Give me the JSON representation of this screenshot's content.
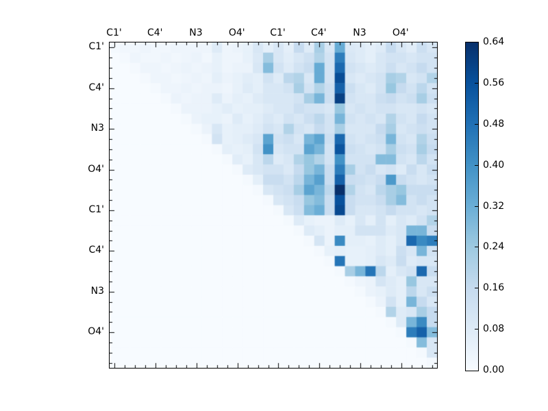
{
  "figure": {
    "background_color": "#ffffff",
    "title": ""
  },
  "chart_data": {
    "type": "heatmap",
    "title": "",
    "xlabel": "",
    "ylabel": "",
    "n": 32,
    "x_axis_side": "top",
    "y_axis_side": "left",
    "grid": false,
    "x_tick_labels": [
      "C1'",
      "C4'",
      "N3",
      "O4'",
      "C1'",
      "C4'",
      "N3",
      "O4'"
    ],
    "y_tick_labels": [
      "C1'",
      "C4'",
      "N3",
      "O4'",
      "C1'",
      "C4'",
      "N3",
      "O4'"
    ],
    "major_tick_positions": [
      0,
      4,
      8,
      12,
      16,
      20,
      24,
      28
    ],
    "vmin": 0.0,
    "vmax": 0.64,
    "colormap": "Blues",
    "colormap_stops": [
      [
        247,
        251,
        255
      ],
      [
        222,
        235,
        247
      ],
      [
        198,
        219,
        239
      ],
      [
        158,
        202,
        225
      ],
      [
        107,
        174,
        214
      ],
      [
        66,
        146,
        198
      ],
      [
        33,
        113,
        181
      ],
      [
        8,
        81,
        156
      ],
      [
        8,
        48,
        107
      ]
    ],
    "colorbar": {
      "tick_labels": [
        "0.00",
        "0.08",
        "0.16",
        "0.24",
        "0.32",
        "0.40",
        "0.48",
        "0.56",
        "0.64"
      ],
      "tick_values": [
        0.0,
        0.08,
        0.16,
        0.24,
        0.32,
        0.4,
        0.48,
        0.56,
        0.64
      ]
    },
    "matrix": [
      [
        0.01,
        0.02,
        0.02,
        0.03,
        0.02,
        0.02,
        0.03,
        0.03,
        0.03,
        0.03,
        0.08,
        0.03,
        0.04,
        0.05,
        0.1,
        0.06,
        0.1,
        0.06,
        0.16,
        0.08,
        0.22,
        0.1,
        0.33,
        0.09,
        0.08,
        0.06,
        0.08,
        0.16,
        0.1,
        0.07,
        0.14,
        0.1
      ],
      [
        0,
        0.01,
        0.03,
        0.02,
        0.02,
        0.03,
        0.02,
        0.03,
        0.04,
        0.02,
        0.05,
        0.03,
        0.03,
        0.05,
        0.09,
        0.22,
        0.1,
        0.07,
        0.1,
        0.13,
        0.2,
        0.12,
        0.45,
        0.1,
        0.08,
        0.06,
        0.1,
        0.12,
        0.12,
        0.1,
        0.12,
        0.12
      ],
      [
        0,
        0,
        0.01,
        0.03,
        0.03,
        0.02,
        0.03,
        0.04,
        0.03,
        0.04,
        0.05,
        0.03,
        0.04,
        0.04,
        0.1,
        0.28,
        0.12,
        0.08,
        0.12,
        0.15,
        0.33,
        0.12,
        0.5,
        0.12,
        0.1,
        0.08,
        0.1,
        0.14,
        0.1,
        0.12,
        0.16,
        0.12
      ],
      [
        0,
        0,
        0,
        0.01,
        0.03,
        0.03,
        0.02,
        0.03,
        0.04,
        0.03,
        0.06,
        0.04,
        0.05,
        0.07,
        0.06,
        0.12,
        0.08,
        0.18,
        0.2,
        0.1,
        0.33,
        0.12,
        0.57,
        0.1,
        0.08,
        0.1,
        0.12,
        0.22,
        0.2,
        0.1,
        0.12,
        0.2
      ],
      [
        0,
        0,
        0,
        0,
        0.01,
        0.03,
        0.03,
        0.04,
        0.03,
        0.04,
        0.04,
        0.03,
        0.05,
        0.08,
        0.06,
        0.1,
        0.1,
        0.12,
        0.22,
        0.12,
        0.2,
        0.14,
        0.52,
        0.14,
        0.1,
        0.08,
        0.12,
        0.25,
        0.16,
        0.12,
        0.18,
        0.12
      ],
      [
        0,
        0,
        0,
        0,
        0,
        0.01,
        0.04,
        0.03,
        0.04,
        0.04,
        0.08,
        0.04,
        0.06,
        0.05,
        0.08,
        0.1,
        0.1,
        0.1,
        0.12,
        0.22,
        0.3,
        0.14,
        0.6,
        0.12,
        0.1,
        0.1,
        0.14,
        0.16,
        0.12,
        0.14,
        0.22,
        0.14
      ],
      [
        0,
        0,
        0,
        0,
        0,
        0,
        0.01,
        0.04,
        0.04,
        0.04,
        0.05,
        0.07,
        0.05,
        0.06,
        0.06,
        0.08,
        0.1,
        0.1,
        0.14,
        0.12,
        0.12,
        0.1,
        0.25,
        0.1,
        0.12,
        0.1,
        0.12,
        0.12,
        0.1,
        0.1,
        0.12,
        0.1
      ],
      [
        0,
        0,
        0,
        0,
        0,
        0,
        0,
        0.01,
        0.04,
        0.05,
        0.05,
        0.04,
        0.08,
        0.05,
        0.07,
        0.1,
        0.08,
        0.12,
        0.1,
        0.14,
        0.18,
        0.12,
        0.3,
        0.12,
        0.1,
        0.12,
        0.1,
        0.2,
        0.12,
        0.1,
        0.16,
        0.12
      ],
      [
        0,
        0,
        0,
        0,
        0,
        0,
        0,
        0,
        0.01,
        0.04,
        0.1,
        0.05,
        0.06,
        0.06,
        0.08,
        0.12,
        0.1,
        0.2,
        0.12,
        0.1,
        0.16,
        0.12,
        0.22,
        0.1,
        0.1,
        0.1,
        0.16,
        0.22,
        0.1,
        0.12,
        0.14,
        0.12
      ],
      [
        0,
        0,
        0,
        0,
        0,
        0,
        0,
        0,
        0,
        0.01,
        0.12,
        0.05,
        0.06,
        0.08,
        0.1,
        0.35,
        0.12,
        0.14,
        0.1,
        0.3,
        0.35,
        0.14,
        0.5,
        0.12,
        0.1,
        0.12,
        0.14,
        0.3,
        0.12,
        0.1,
        0.2,
        0.14
      ],
      [
        0,
        0,
        0,
        0,
        0,
        0,
        0,
        0,
        0,
        0,
        0.01,
        0.06,
        0.05,
        0.06,
        0.12,
        0.4,
        0.1,
        0.12,
        0.12,
        0.35,
        0.3,
        0.12,
        0.55,
        0.14,
        0.12,
        0.1,
        0.12,
        0.22,
        0.14,
        0.12,
        0.22,
        0.16
      ],
      [
        0,
        0,
        0,
        0,
        0,
        0,
        0,
        0,
        0,
        0,
        0,
        0.01,
        0.07,
        0.05,
        0.1,
        0.18,
        0.08,
        0.1,
        0.2,
        0.25,
        0.2,
        0.12,
        0.4,
        0.12,
        0.12,
        0.12,
        0.28,
        0.28,
        0.12,
        0.1,
        0.18,
        0.12
      ],
      [
        0,
        0,
        0,
        0,
        0,
        0,
        0,
        0,
        0,
        0,
        0,
        0,
        0.01,
        0.08,
        0.1,
        0.12,
        0.12,
        0.09,
        0.16,
        0.25,
        0.3,
        0.15,
        0.45,
        0.22,
        0.12,
        0.15,
        0.1,
        0.12,
        0.08,
        0.15,
        0.1,
        0.15
      ],
      [
        0,
        0,
        0,
        0,
        0,
        0,
        0,
        0,
        0,
        0,
        0,
        0,
        0,
        0.01,
        0.06,
        0.15,
        0.15,
        0.12,
        0.18,
        0.3,
        0.36,
        0.15,
        0.52,
        0.15,
        0.14,
        0.12,
        0.15,
        0.38,
        0.15,
        0.12,
        0.1,
        0.12
      ],
      [
        0,
        0,
        0,
        0,
        0,
        0,
        0,
        0,
        0,
        0,
        0,
        0,
        0,
        0,
        0.01,
        0.1,
        0.12,
        0.14,
        0.22,
        0.35,
        0.3,
        0.18,
        0.64,
        0.2,
        0.12,
        0.1,
        0.18,
        0.22,
        0.25,
        0.15,
        0.15,
        0.15
      ],
      [
        0,
        0,
        0,
        0,
        0,
        0,
        0,
        0,
        0,
        0,
        0,
        0,
        0,
        0,
        0,
        0.01,
        0.1,
        0.12,
        0.15,
        0.25,
        0.28,
        0.15,
        0.56,
        0.15,
        0.12,
        0.12,
        0.15,
        0.22,
        0.28,
        0.12,
        0.15,
        0.12
      ],
      [
        0,
        0,
        0,
        0,
        0,
        0,
        0,
        0,
        0,
        0,
        0,
        0,
        0,
        0,
        0,
        0,
        0.01,
        0.1,
        0.14,
        0.28,
        0.32,
        0.15,
        0.58,
        0.15,
        0.1,
        0.1,
        0.12,
        0.16,
        0.12,
        0.12,
        0.1,
        0.12
      ],
      [
        0,
        0,
        0,
        0,
        0,
        0,
        0,
        0,
        0,
        0,
        0,
        0,
        0,
        0,
        0,
        0,
        0,
        0.01,
        0.08,
        0.05,
        0.04,
        0.04,
        0.08,
        0.05,
        0.1,
        0.06,
        0.12,
        0.06,
        0.1,
        0.08,
        0.12,
        0.2
      ],
      [
        0,
        0,
        0,
        0,
        0,
        0,
        0,
        0,
        0,
        0,
        0,
        0,
        0,
        0,
        0,
        0,
        0,
        0,
        0.01,
        0.08,
        0.06,
        0.04,
        0.06,
        0.06,
        0.12,
        0.12,
        0.12,
        0.08,
        0.1,
        0.3,
        0.3,
        0.15
      ],
      [
        0,
        0,
        0,
        0,
        0,
        0,
        0,
        0,
        0,
        0,
        0,
        0,
        0,
        0,
        0,
        0,
        0,
        0,
        0,
        0.01,
        0.11,
        0.04,
        0.42,
        0.06,
        0.06,
        0.05,
        0.08,
        0.06,
        0.1,
        0.5,
        0.42,
        0.45
      ],
      [
        0,
        0,
        0,
        0,
        0,
        0,
        0,
        0,
        0,
        0,
        0,
        0,
        0,
        0,
        0,
        0,
        0,
        0,
        0,
        0,
        0.01,
        0.05,
        0.06,
        0.05,
        0.05,
        0.06,
        0.08,
        0.06,
        0.14,
        0.1,
        0.3,
        0.12
      ],
      [
        0,
        0,
        0,
        0,
        0,
        0,
        0,
        0,
        0,
        0,
        0,
        0,
        0,
        0,
        0,
        0,
        0,
        0,
        0,
        0,
        0,
        0.01,
        0.47,
        0.05,
        0.05,
        0.06,
        0.1,
        0.08,
        0.15,
        0.08,
        0.1,
        0.1
      ],
      [
        0,
        0,
        0,
        0,
        0,
        0,
        0,
        0,
        0,
        0,
        0,
        0,
        0,
        0,
        0,
        0,
        0,
        0,
        0,
        0,
        0,
        0,
        0.01,
        0.22,
        0.3,
        0.47,
        0.18,
        0.06,
        0.1,
        0.12,
        0.5,
        0.15
      ],
      [
        0,
        0,
        0,
        0,
        0,
        0,
        0,
        0,
        0,
        0,
        0,
        0,
        0,
        0,
        0,
        0,
        0,
        0,
        0,
        0,
        0,
        0,
        0,
        0.01,
        0.03,
        0.04,
        0.11,
        0.08,
        0.06,
        0.25,
        0.1,
        0.1
      ],
      [
        0,
        0,
        0,
        0,
        0,
        0,
        0,
        0,
        0,
        0,
        0,
        0,
        0,
        0,
        0,
        0,
        0,
        0,
        0,
        0,
        0,
        0,
        0,
        0,
        0.01,
        0.04,
        0.05,
        0.08,
        0.06,
        0.18,
        0.1,
        0.14
      ],
      [
        0,
        0,
        0,
        0,
        0,
        0,
        0,
        0,
        0,
        0,
        0,
        0,
        0,
        0,
        0,
        0,
        0,
        0,
        0,
        0,
        0,
        0,
        0,
        0,
        0,
        0.01,
        0.04,
        0.12,
        0.06,
        0.3,
        0.16,
        0.1
      ],
      [
        0,
        0,
        0,
        0,
        0,
        0,
        0,
        0,
        0,
        0,
        0,
        0,
        0,
        0,
        0,
        0,
        0,
        0,
        0,
        0,
        0,
        0,
        0,
        0,
        0,
        0,
        0.01,
        0.2,
        0.08,
        0.1,
        0.22,
        0.16
      ],
      [
        0,
        0,
        0,
        0,
        0,
        0,
        0,
        0,
        0,
        0,
        0,
        0,
        0,
        0,
        0,
        0,
        0,
        0,
        0,
        0,
        0,
        0,
        0,
        0,
        0,
        0,
        0,
        0.01,
        0.08,
        0.3,
        0.42,
        0.16
      ],
      [
        0,
        0,
        0,
        0,
        0,
        0,
        0,
        0,
        0,
        0,
        0,
        0,
        0,
        0,
        0,
        0,
        0,
        0,
        0,
        0,
        0,
        0,
        0,
        0,
        0,
        0,
        0,
        0,
        0.01,
        0.45,
        0.52,
        0.28
      ],
      [
        0,
        0,
        0,
        0,
        0,
        0,
        0,
        0,
        0,
        0,
        0,
        0,
        0,
        0,
        0,
        0,
        0,
        0,
        0,
        0,
        0,
        0,
        0,
        0,
        0,
        0,
        0,
        0,
        0,
        0.01,
        0.28,
        0.1
      ],
      [
        0,
        0,
        0,
        0,
        0,
        0,
        0,
        0,
        0,
        0,
        0,
        0,
        0,
        0,
        0,
        0,
        0,
        0,
        0,
        0,
        0,
        0,
        0,
        0,
        0,
        0,
        0,
        0,
        0,
        0,
        0.01,
        0.1
      ],
      [
        0,
        0,
        0,
        0,
        0,
        0,
        0,
        0,
        0,
        0,
        0,
        0,
        0,
        0,
        0,
        0,
        0,
        0,
        0,
        0,
        0,
        0,
        0,
        0,
        0,
        0,
        0,
        0,
        0,
        0,
        0,
        0.01
      ]
    ]
  }
}
